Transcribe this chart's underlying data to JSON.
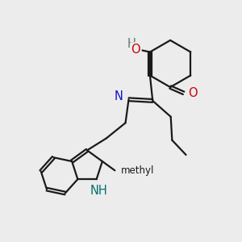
{
  "bg": "#ececec",
  "bond_color": "#1a1a1a",
  "bond_lw": 1.6,
  "dbl_sep": 0.055,
  "fs": 10.5,
  "colors": {
    "O": "#cc0000",
    "N": "#1111cc",
    "NH": "#007070",
    "OH_H": "#557777",
    "OH_O": "#cc0000",
    "C": "#1a1a1a"
  },
  "xlim": [
    0.5,
    9.5
  ],
  "ylim": [
    1.0,
    10.0
  ]
}
